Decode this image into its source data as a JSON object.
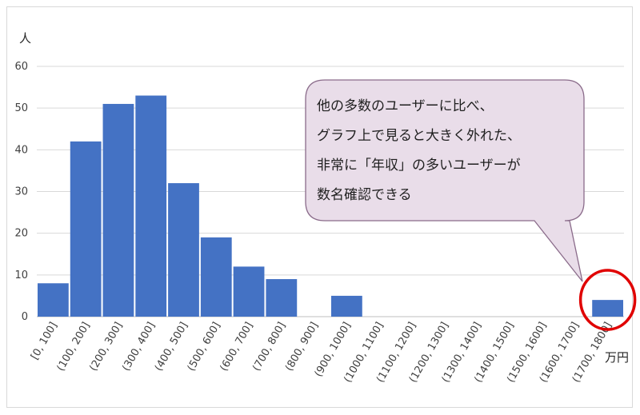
{
  "chart_data": {
    "type": "bar",
    "title": "",
    "ylabel": "人",
    "xlabel": "万円",
    "ylim": [
      0,
      60
    ],
    "yticks": [
      0,
      10,
      20,
      30,
      40,
      50,
      60
    ],
    "grid": true,
    "categories": [
      "[0, 100]",
      "(100, 200]",
      "(200, 300]",
      "(300, 400]",
      "(400, 500]",
      "(500, 600]",
      "(600, 700]",
      "(700, 800]",
      "(800, 900]",
      "(900, 1000]",
      "(1000, 1100]",
      "(1100, 1200]",
      "(1200, 1300]",
      "(1300, 1400]",
      "(1400, 1500]",
      "(1500, 1600]",
      "(1600, 1700]",
      "(1700, 1800]"
    ],
    "values": [
      8,
      42,
      51,
      53,
      32,
      19,
      12,
      9,
      0,
      5,
      0,
      0,
      0,
      0,
      0,
      0,
      0,
      4
    ],
    "bar_color": "#4472c4",
    "highlight_color": "#e00000",
    "highlight_category": "(1700, 1800]",
    "annotation": {
      "lines": [
        "他の多数のユーザーに比べ、",
        "グラフ上で見ると大きく外れた、",
        "非常に「年収」の多いユーザーが",
        "数名確認できる"
      ],
      "fill": "#e9dde9",
      "border": "#8a6b8a"
    }
  }
}
